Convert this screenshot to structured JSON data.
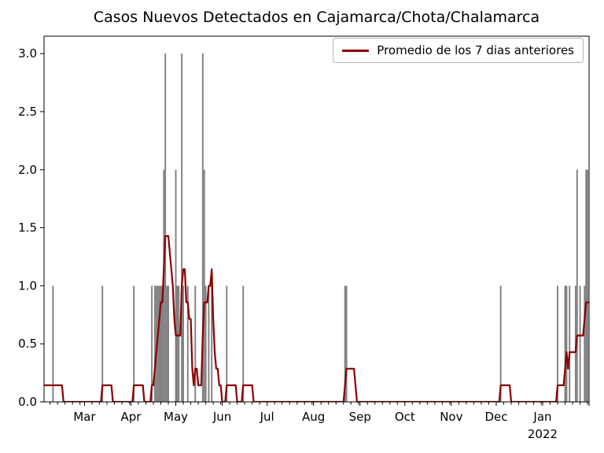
{
  "figure": {
    "title": "Casos Nuevos Detectados en Cajamarca/Chota/Chalamarca",
    "background": "#ffffff"
  },
  "legend": {
    "label": "Promedio de los 7 dias anteriores",
    "line_color": "#8b0000",
    "border_color": "#b3b3b3",
    "position": "upper-right"
  },
  "chart_data": {
    "type": "bar",
    "title": "Casos Nuevos Detectados en Cajamarca/Chota/Chalamarca",
    "x_axis": {
      "kind": "date",
      "start": "2021-02-02",
      "end": "2022-02-01",
      "major_tick_labels": [
        "Mar",
        "Apr",
        "May",
        "Jun",
        "Jul",
        "Aug",
        "Sep",
        "Oct",
        "Nov",
        "Dec",
        "Jan"
      ],
      "year_annotation": {
        "label": "2022",
        "under_month": "Jan"
      },
      "minor_tick_monthdays": [
        6,
        11,
        16,
        21,
        26,
        31
      ]
    },
    "y_axis": {
      "ticks": [
        "0.0",
        "0.5",
        "1.0",
        "1.5",
        "2.0",
        "2.5",
        "3.0"
      ],
      "min": 0,
      "max": 3.15
    },
    "bars": {
      "name": "casos nuevos por dia",
      "color": "#7f7f7f",
      "data": [
        {
          "date": "2021-02-01",
          "cases": 1
        },
        {
          "date": "2021-02-08",
          "cases": 1
        },
        {
          "date": "2021-03-13",
          "cases": 1
        },
        {
          "date": "2021-04-03",
          "cases": 1
        },
        {
          "date": "2021-04-15",
          "cases": 1
        },
        {
          "date": "2021-04-17",
          "cases": 1
        },
        {
          "date": "2021-04-18",
          "cases": 1
        },
        {
          "date": "2021-04-19",
          "cases": 1
        },
        {
          "date": "2021-04-20",
          "cases": 1
        },
        {
          "date": "2021-04-21",
          "cases": 1
        },
        {
          "date": "2021-04-22",
          "cases": 1
        },
        {
          "date": "2021-04-23",
          "cases": 2
        },
        {
          "date": "2021-04-24",
          "cases": 3
        },
        {
          "date": "2021-04-25",
          "cases": 1
        },
        {
          "date": "2021-04-26",
          "cases": 1
        },
        {
          "date": "2021-05-01",
          "cases": 2
        },
        {
          "date": "2021-05-02",
          "cases": 1
        },
        {
          "date": "2021-05-03",
          "cases": 1
        },
        {
          "date": "2021-05-05",
          "cases": 3
        },
        {
          "date": "2021-05-06",
          "cases": 1
        },
        {
          "date": "2021-05-09",
          "cases": 1
        },
        {
          "date": "2021-05-14",
          "cases": 1
        },
        {
          "date": "2021-05-19",
          "cases": 3
        },
        {
          "date": "2021-05-20",
          "cases": 2
        },
        {
          "date": "2021-05-21",
          "cases": 1
        },
        {
          "date": "2021-05-23",
          "cases": 1
        },
        {
          "date": "2021-05-25",
          "cases": 1
        },
        {
          "date": "2021-06-04",
          "cases": 1
        },
        {
          "date": "2021-06-15",
          "cases": 1
        },
        {
          "date": "2021-08-22",
          "cases": 1
        },
        {
          "date": "2021-08-23",
          "cases": 1
        },
        {
          "date": "2021-12-04",
          "cases": 1
        },
        {
          "date": "2022-01-11",
          "cases": 1
        },
        {
          "date": "2022-01-16",
          "cases": 1
        },
        {
          "date": "2022-01-17",
          "cases": 1
        },
        {
          "date": "2022-01-19",
          "cases": 1
        },
        {
          "date": "2022-01-23",
          "cases": 1
        },
        {
          "date": "2022-01-24",
          "cases": 2
        },
        {
          "date": "2022-01-26",
          "cases": 1
        },
        {
          "date": "2022-01-29",
          "cases": 1
        },
        {
          "date": "2022-01-30",
          "cases": 2
        },
        {
          "date": "2022-01-31",
          "cases": 2
        }
      ]
    },
    "line": {
      "name": "Promedio de los 7 dias anteriores",
      "color": "#8b0000",
      "window_days": 7,
      "derivation": "trailing mean of daily cases over the previous 7 days (inclusive of current day)",
      "peaks": [
        {
          "date": "2021-04-26",
          "value": 1.43
        },
        {
          "date": "2021-05-06",
          "value": 1.14
        },
        {
          "date": "2021-05-25",
          "value": 1.14
        },
        {
          "date": "2021-08-23",
          "value": 0.29
        },
        {
          "date": "2022-01-31",
          "value": 0.86
        }
      ]
    },
    "legend_position": "upper right",
    "grid": false
  }
}
